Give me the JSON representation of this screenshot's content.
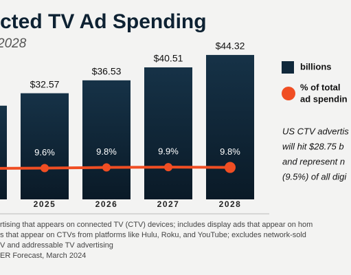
{
  "chart_data": {
    "type": "bar",
    "title": "cted TV Ad Spending",
    "subtitle": "2028",
    "categories": [
      null,
      "2025",
      "2026",
      "2027",
      "2028"
    ],
    "series": [
      {
        "name": "billions",
        "color": "#10283b",
        "values": [
          28.75,
          32.57,
          36.53,
          40.51,
          44.32
        ],
        "value_labels": [
          null,
          "$32.57",
          "$36.53",
          "$40.51",
          "$44.32"
        ]
      },
      {
        "name": "% of total",
        "name_line2": "ad spendin",
        "type": "line",
        "axis": "y2",
        "color": "#f04e23",
        "values": [
          9.5,
          9.6,
          9.8,
          9.9,
          9.8
        ],
        "value_labels": [
          null,
          "9.6%",
          "9.8%",
          "9.9%",
          "9.8%"
        ]
      }
    ],
    "ylim": [
      0,
      50
    ],
    "y2lim": [
      0,
      50
    ],
    "annotation": [
      "US CTV advertis",
      "will hit $28.75 b",
      "and represent n",
      "(9.5%) of all digi"
    ],
    "footnote": [
      "rtising that appears on connected TV (CTV) devices; includes display ads that appear on hom",
      "s that appear on CTVs from platforms like Hulu, Roku, and YouTube; excludes network-sold",
      "V and addressable TV advertising",
      "ER Forecast, March 2024"
    ]
  }
}
